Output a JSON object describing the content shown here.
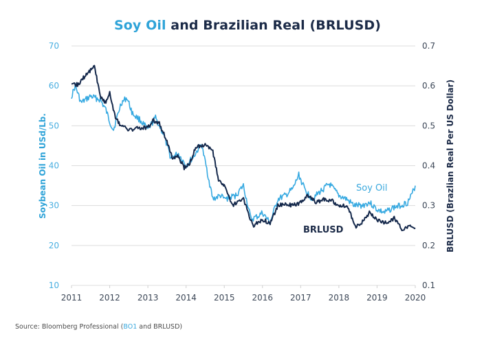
{
  "title": {
    "accent_part": "Soy Oil",
    "rest": " and Brazilian Real (BRLUSD)"
  },
  "source": {
    "prefix": "Source: Bloomberg Professional (",
    "accent": "BO1",
    "suffix": " and BRLUSD)"
  },
  "colors": {
    "soy": "#36a9e1",
    "brl": "#14284b",
    "grid": "#dcdcdc"
  },
  "chart_data": {
    "type": "line",
    "title": "Soy Oil and Brazilian Real (BRLUSD)",
    "xlabel": "",
    "ylabel": "Soybean Oil in USd/Lb.",
    "y2label": "BRLUSD (Brazlian Real Per US Dollar)",
    "xlim": [
      2011,
      2020
    ],
    "ylim": [
      10,
      70
    ],
    "y2lim": [
      0.1,
      0.7
    ],
    "x_ticks": [
      "2011",
      "2012",
      "2013",
      "2014",
      "2015",
      "2016",
      "2017",
      "2018",
      "2019",
      "2020"
    ],
    "y_ticks": [
      "10",
      "20",
      "30",
      "40",
      "50",
      "60",
      "70"
    ],
    "y2_ticks": [
      "0.1",
      "0.2",
      "0.3",
      "0.4",
      "0.5",
      "0.6",
      "0.7"
    ],
    "grid": true,
    "series": [
      {
        "name": "Soy Oil",
        "axis": "left",
        "x": [
          2011.0,
          2011.1,
          2011.25,
          2011.5,
          2011.75,
          2011.9,
          2012.0,
          2012.1,
          2012.3,
          2012.45,
          2012.6,
          2012.8,
          2013.0,
          2013.2,
          2013.4,
          2013.6,
          2013.8,
          2014.0,
          2014.2,
          2014.4,
          2014.5,
          2014.7,
          2014.9,
          2015.0,
          2015.3,
          2015.5,
          2015.7,
          2015.9,
          2016.0,
          2016.2,
          2016.4,
          2016.6,
          2016.8,
          2016.95,
          2017.1,
          2017.3,
          2017.5,
          2017.75,
          2018.0,
          2018.2,
          2018.4,
          2018.6,
          2018.8,
          2019.0,
          2019.2,
          2019.4,
          2019.6,
          2019.8,
          2019.9,
          2020.0
        ],
        "values": [
          57.4,
          60,
          55.7,
          57.4,
          56.5,
          54,
          51,
          49,
          55.7,
          57,
          53,
          51.4,
          49,
          52,
          48,
          42,
          43,
          40,
          42.3,
          45.4,
          41,
          31.6,
          32.5,
          31.6,
          32.5,
          35,
          26.5,
          27.4,
          28.2,
          25.6,
          31.6,
          32.5,
          34.2,
          37.7,
          34.2,
          31.6,
          33.4,
          35.4,
          32.5,
          31.6,
          30,
          30,
          30.8,
          29,
          28.2,
          29.4,
          30,
          30.8,
          32.5,
          35
        ]
      },
      {
        "name": "BRLUSD",
        "axis": "right",
        "x": [
          2011.0,
          2011.2,
          2011.35,
          2011.5,
          2011.6,
          2011.75,
          2011.9,
          2012.0,
          2012.15,
          2012.3,
          2012.5,
          2012.8,
          2013.0,
          2013.15,
          2013.3,
          2013.5,
          2013.65,
          2013.8,
          2013.95,
          2014.1,
          2014.25,
          2014.5,
          2014.7,
          2014.85,
          2015.0,
          2015.2,
          2015.5,
          2015.75,
          2016.0,
          2016.2,
          2016.4,
          2016.6,
          2016.8,
          2017.0,
          2017.2,
          2017.4,
          2017.6,
          2017.85,
          2018.0,
          2018.2,
          2018.45,
          2018.6,
          2018.8,
          2019.0,
          2019.2,
          2019.45,
          2019.65,
          2019.85,
          2020.0
        ],
        "values": [
          0.6,
          0.605,
          0.625,
          0.64,
          0.65,
          0.575,
          0.557,
          0.583,
          0.52,
          0.5,
          0.49,
          0.494,
          0.497,
          0.514,
          0.505,
          0.462,
          0.416,
          0.423,
          0.394,
          0.406,
          0.445,
          0.454,
          0.434,
          0.364,
          0.35,
          0.3,
          0.316,
          0.248,
          0.265,
          0.256,
          0.3,
          0.303,
          0.3,
          0.308,
          0.325,
          0.308,
          0.316,
          0.311,
          0.3,
          0.3,
          0.248,
          0.256,
          0.282,
          0.265,
          0.256,
          0.268,
          0.242,
          0.248,
          0.244
        ]
      }
    ],
    "annotations": [
      {
        "text": "Soy Oil",
        "series": "Soy Oil"
      },
      {
        "text": "BRLUSD",
        "series": "BRLUSD"
      }
    ]
  }
}
